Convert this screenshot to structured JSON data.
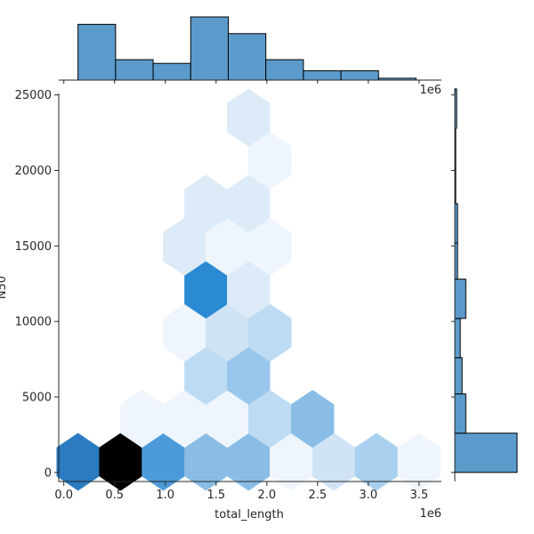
{
  "chart_data": {
    "type": "jointplot-hex",
    "xlabel": "total_length",
    "ylabel": "N50",
    "x_offset_label": "1e6",
    "marg_x_offset_label": "1e6",
    "xlim": [
      -0.05,
      3.72
    ],
    "ylim": [
      -600,
      25100
    ],
    "x_ticks": [
      0.0,
      0.5,
      1.0,
      1.5,
      2.0,
      2.5,
      3.0,
      3.5
    ],
    "x_tick_labels": [
      "0.0",
      "0.5",
      "1.0",
      "1.5",
      "2.0",
      "2.5",
      "3.0",
      "3.5"
    ],
    "y_ticks": [
      0,
      5000,
      10000,
      15000,
      20000,
      25000
    ],
    "y_tick_labels": [
      "0",
      "5000",
      "10000",
      "15000",
      "20000",
      "25000"
    ],
    "colors": {
      "hist": "#5b9bcb",
      "edge": "#000000",
      "axis": "#262626"
    },
    "hexbins": [
      {
        "x": 0.14,
        "y": 700,
        "color": "#2a7bc0"
      },
      {
        "x": 0.56,
        "y": 700,
        "color": "#000000"
      },
      {
        "x": 0.98,
        "y": 700,
        "color": "#4c9ad9"
      },
      {
        "x": 1.4,
        "y": 700,
        "color": "#89bde6"
      },
      {
        "x": 1.82,
        "y": 700,
        "color": "#89bde6"
      },
      {
        "x": 2.24,
        "y": 700,
        "color": "#eef5fc"
      },
      {
        "x": 2.66,
        "y": 700,
        "color": "#cfe3f5"
      },
      {
        "x": 3.08,
        "y": 700,
        "color": "#a9d0ef"
      },
      {
        "x": 3.5,
        "y": 700,
        "color": "#eef5fc"
      },
      {
        "x": 0.77,
        "y": 3550,
        "color": "#eef5fc"
      },
      {
        "x": 1.19,
        "y": 3550,
        "color": "#eef5fc"
      },
      {
        "x": 1.61,
        "y": 3550,
        "color": "#eef5fc"
      },
      {
        "x": 2.03,
        "y": 3550,
        "color": "#bddbf2"
      },
      {
        "x": 2.45,
        "y": 3550,
        "color": "#89bde6"
      },
      {
        "x": 1.4,
        "y": 6400,
        "color": "#bddbf2"
      },
      {
        "x": 1.82,
        "y": 6400,
        "color": "#99c6ec"
      },
      {
        "x": 1.19,
        "y": 9250,
        "color": "#eef5fc"
      },
      {
        "x": 1.61,
        "y": 9250,
        "color": "#cfe3f5"
      },
      {
        "x": 2.03,
        "y": 9250,
        "color": "#bddbf2"
      },
      {
        "x": 1.4,
        "y": 12100,
        "color": "#2a8ad4"
      },
      {
        "x": 1.82,
        "y": 12100,
        "color": "#dcebf7"
      },
      {
        "x": 1.19,
        "y": 14950,
        "color": "#dcebf7"
      },
      {
        "x": 1.61,
        "y": 14950,
        "color": "#eef5fc"
      },
      {
        "x": 2.03,
        "y": 14950,
        "color": "#eef5fc"
      },
      {
        "x": 1.4,
        "y": 17800,
        "color": "#dcebf7"
      },
      {
        "x": 1.82,
        "y": 17800,
        "color": "#dcebf7"
      },
      {
        "x": 2.03,
        "y": 20650,
        "color": "#eef5fc"
      },
      {
        "x": 1.82,
        "y": 23500,
        "color": "#dcebf7"
      }
    ],
    "hex_dx": 0.42,
    "hex_dy": 2850,
    "marginal_x": {
      "bin_edges": [
        0.14,
        0.51,
        0.88,
        1.25,
        1.62,
        1.99,
        2.36,
        2.73,
        3.1,
        3.47
      ],
      "counts": [
        15,
        5.5,
        4.5,
        17,
        12.5,
        5.5,
        2.5,
        2.5,
        0.5
      ],
      "max": 17
    },
    "marginal_y": {
      "bin_edges": [
        0,
        2600,
        5200,
        7600,
        10200,
        12800,
        15200,
        17800,
        20400,
        22800,
        25400
      ],
      "counts": [
        34,
        6,
        4,
        3,
        6,
        1.5,
        1.5,
        0.5,
        0.5,
        1
      ],
      "max": 34
    }
  }
}
